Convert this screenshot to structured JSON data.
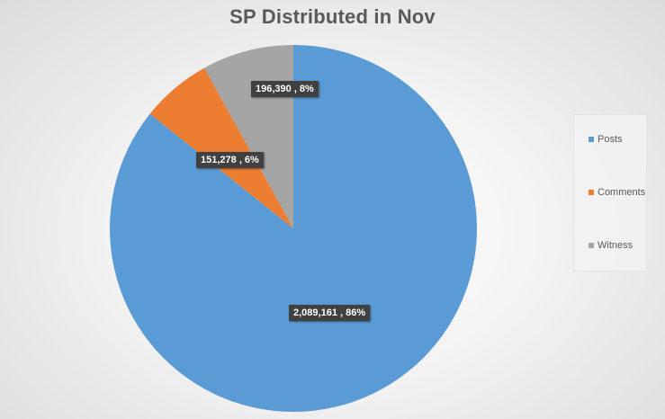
{
  "chart_data": {
    "type": "pie",
    "title": "SP Distributed in Nov",
    "categories": [
      "Posts",
      "Comments",
      "Witness"
    ],
    "values": [
      2089161,
      151278,
      196390
    ],
    "percent_labels": [
      "86%",
      "6%",
      "8%"
    ],
    "data_labels": [
      "2,089,161 , 86%",
      "151,278 , 6%",
      "196,390 , 8%"
    ],
    "colors": [
      "#5b9bd5",
      "#ed7d31",
      "#a5a5a5"
    ],
    "legend": {
      "position": "right",
      "entries": [
        "Posts",
        "Comments",
        "Witness"
      ]
    },
    "start_angle_deg": 0,
    "direction": "clockwise"
  }
}
